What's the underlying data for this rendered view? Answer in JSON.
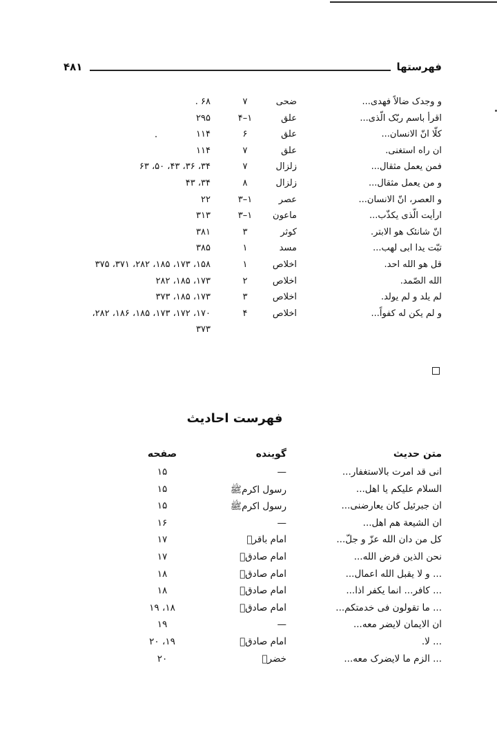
{
  "header": {
    "title": "فهرستها",
    "page_number": "۴۸۱"
  },
  "verses": [
    {
      "text": "و وجدک ضالاً فهدی...",
      "sura": "ضحی",
      "ayah": "۷",
      "pages": "۶۸ ."
    },
    {
      "text": "اقرأ باسم ربّک الّذی...",
      "sura": "علق",
      "ayah": "۱–۴",
      "pages": "۲۹۵"
    },
    {
      "text": "کلّا انّ الانسان...",
      "sura": "علق",
      "ayah": "۶",
      "pages": "۱۱۴"
    },
    {
      "text": "ان راه استغنی.",
      "sura": "علق",
      "ayah": "۷",
      "pages": "۱۱۴"
    },
    {
      "text": "فمن یعمل مثقال...",
      "sura": "زلزال",
      "ayah": "۷",
      "pages": "۳۴، ۳۶، ۴۳، ۵۰، ۶۳"
    },
    {
      "text": "و من یعمل مثقال...",
      "sura": "زلزال",
      "ayah": "۸",
      "pages": "۳۴، ۴۳"
    },
    {
      "text": "و العصر، انّ الانسان...",
      "sura": "عصر",
      "ayah": "۱–۳",
      "pages": "۲۲"
    },
    {
      "text": "ارأیت الّذی یکذّب...",
      "sura": "ماعون",
      "ayah": "۱–۳",
      "pages": "۳۱۳"
    },
    {
      "text": "انّ شانئک هو الابتر.",
      "sura": "کوثر",
      "ayah": "۳",
      "pages": "۳۸۱"
    },
    {
      "text": "تبّت یدا ابی لهب...",
      "sura": "مسد",
      "ayah": "۱",
      "pages": "۳۸۵"
    },
    {
      "text": "قل هو الله احد.",
      "sura": "اخلاص",
      "ayah": "۱",
      "pages": "۱۵۸، ۱۷۳، ۱۸۵، ۲۸۲، ۳۷۱، ۳۷۵"
    },
    {
      "text": "الله الصّمد.",
      "sura": "اخلاص",
      "ayah": "۲",
      "pages": "۱۷۳، ۱۸۵، ۲۸۲"
    },
    {
      "text": "لم یلد و لم یولد.",
      "sura": "اخلاص",
      "ayah": "۳",
      "pages": "۱۷۳، ۱۸۵، ۳۷۳"
    },
    {
      "text": "و لم یکن له کفواً...",
      "sura": "اخلاص",
      "ayah": "۴",
      "pages": "۱۷۰، ۱۷۲، ۱۷۳، ۱۸۵، ۱۸۶، ۲۸۲،"
    },
    {
      "text": "",
      "sura": "",
      "ayah": "",
      "pages": "۳۷۳"
    }
  ],
  "hadith_index": {
    "title": "فهرست احادیث",
    "columns": {
      "text": "متن حدیث",
      "speaker": "گوینده",
      "page": "صفحه"
    },
    "rows": [
      {
        "text": "انی قد امرت بالاستغفار...",
        "speaker": "—",
        "page": "۱۵"
      },
      {
        "text": "السلام علیکم یا اهل...",
        "speaker": "رسول اکرمﷺ",
        "page": "۱۵"
      },
      {
        "text": "ان جبرئیل کان یعارضنی...",
        "speaker": "رسول اکرمﷺ",
        "page": "۱۵"
      },
      {
        "text": "ان الشیعة هم اهل...",
        "speaker": "—",
        "page": "۱۶"
      },
      {
        "text": "کل من دان الله عزّ و جلّ...",
        "speaker": "امام باقرؑ",
        "page": "۱۷"
      },
      {
        "text": "نحن الذین فرض الله...",
        "speaker": "امام صادقؑ",
        "page": "۱۷"
      },
      {
        "text": "... و لا یقبل الله اعمال...",
        "speaker": "امام صادقؑ",
        "page": "۱۸"
      },
      {
        "text": "... کافر... انما یکفر اذا...",
        "speaker": "امام صادقؑ",
        "page": "۱۸"
      },
      {
        "text": "... ما تقولون فی خدمتکم...",
        "speaker": "امام صادقؑ",
        "page": "۱۸، ۱۹"
      },
      {
        "text": "ان الایمان لایضر معه...",
        "speaker": "—",
        "page": "۱۹"
      },
      {
        "text": "... لا.",
        "speaker": "امام صادقؑ",
        "page": "۱۹، ۲۰"
      },
      {
        "text": "... الزم ما لایضرک معه...",
        "speaker": "خضرؑ",
        "page": "۲۰"
      }
    ]
  }
}
